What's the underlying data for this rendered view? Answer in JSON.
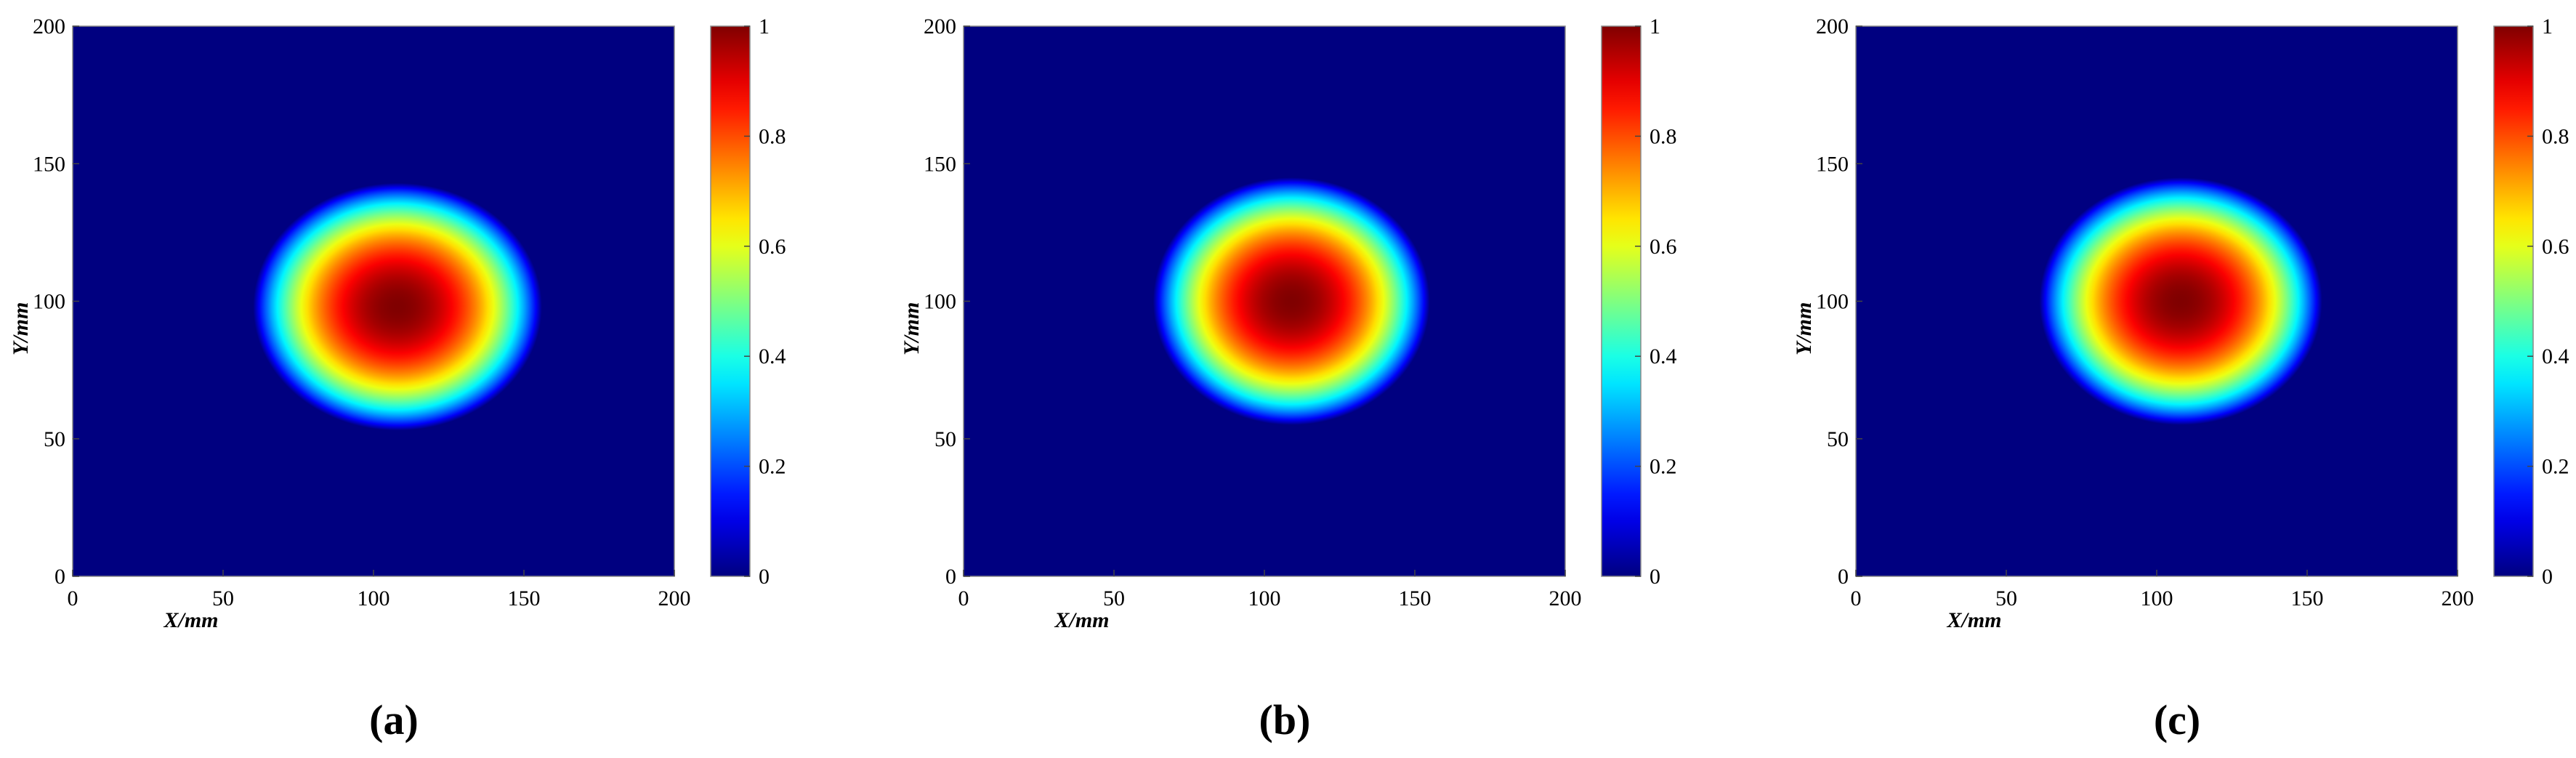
{
  "chart_data": [
    {
      "type": "heatmap",
      "caption": "(a)",
      "xlabel": "X/mm",
      "ylabel": "Y/mm",
      "xlim": [
        0,
        200
      ],
      "ylim": [
        0,
        200
      ],
      "xticks": [
        "0",
        "50",
        "100",
        "150",
        "200"
      ],
      "yticks": [
        "0",
        "50",
        "100",
        "150",
        "200"
      ],
      "colorbar": {
        "range": [
          0,
          1
        ],
        "ticks": [
          "0",
          "0.2",
          "0.4",
          "0.6",
          "0.8",
          "1"
        ],
        "colormap": "jet"
      },
      "field": {
        "center_x": 108,
        "center_y": 98,
        "radius_x": 48,
        "radius_y": 45,
        "peak": 1
      }
    },
    {
      "type": "heatmap",
      "caption": "(b)",
      "xlabel": "X/mm",
      "ylabel": "Y/mm",
      "xlim": [
        0,
        200
      ],
      "ylim": [
        0,
        200
      ],
      "xticks": [
        "0",
        "50",
        "100",
        "150",
        "200"
      ],
      "yticks": [
        "0",
        "50",
        "100",
        "150",
        "200"
      ],
      "colorbar": {
        "range": [
          0,
          1
        ],
        "ticks": [
          "0",
          "0.2",
          "0.4",
          "0.6",
          "0.8",
          "1"
        ],
        "colormap": "jet"
      },
      "field": {
        "center_x": 109,
        "center_y": 100,
        "radius_x": 46,
        "radius_y": 45,
        "peak": 1
      }
    },
    {
      "type": "heatmap",
      "caption": "(c)",
      "xlabel": "X/mm",
      "ylabel": "Y/mm",
      "xlim": [
        0,
        200
      ],
      "ylim": [
        0,
        200
      ],
      "xticks": [
        "0",
        "50",
        "100",
        "150",
        "200"
      ],
      "yticks": [
        "0",
        "50",
        "100",
        "150",
        "200"
      ],
      "colorbar": {
        "range": [
          0,
          1
        ],
        "ticks": [
          "0",
          "0.2",
          "0.4",
          "0.6",
          "0.8",
          "1"
        ],
        "colormap": "jet"
      },
      "field": {
        "center_x": 108,
        "center_y": 100,
        "radius_x": 47,
        "radius_y": 45,
        "peak": 1
      }
    }
  ]
}
